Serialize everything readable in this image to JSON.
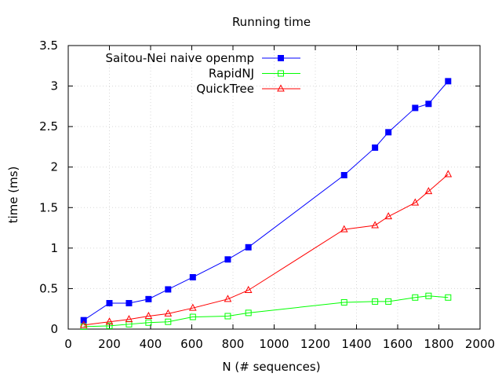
{
  "chart_data": {
    "type": "line",
    "title": "Running time",
    "xlabel": "N (# sequences)",
    "ylabel": "time (ms)",
    "xlim": [
      0,
      2000
    ],
    "ylim": [
      0,
      3.5
    ],
    "xticks": [
      0,
      200,
      400,
      600,
      800,
      1000,
      1200,
      1400,
      1600,
      1800,
      2000
    ],
    "yticks": [
      0,
      0.5,
      1,
      1.5,
      2,
      2.5,
      3,
      3.5
    ],
    "xtick_labels": [
      "0",
      "200",
      "400",
      "600",
      "800",
      "1000",
      "1200",
      "1400",
      "1600",
      "1800",
      "2000"
    ],
    "ytick_labels": [
      "0",
      "0.5",
      "1",
      "1.5",
      "2",
      "2.5",
      "3",
      "3.5"
    ],
    "grid": true,
    "legend_position": "top-left",
    "series": [
      {
        "name": "Saitou-Nei naive openmp",
        "color": "#0000ff",
        "marker": "filled-square",
        "x": [
          75,
          200,
          295,
          390,
          485,
          605,
          775,
          875,
          1340,
          1490,
          1555,
          1685,
          1750,
          1845
        ],
        "y": [
          0.11,
          0.32,
          0.32,
          0.37,
          0.49,
          0.64,
          0.86,
          1.01,
          1.9,
          2.24,
          2.43,
          2.73,
          2.78,
          3.06
        ]
      },
      {
        "name": "RapidNJ",
        "color": "#00ff00",
        "marker": "open-square",
        "x": [
          75,
          200,
          295,
          390,
          485,
          605,
          775,
          875,
          1340,
          1490,
          1555,
          1685,
          1750,
          1845
        ],
        "y": [
          0.03,
          0.04,
          0.06,
          0.08,
          0.09,
          0.15,
          0.16,
          0.2,
          0.33,
          0.34,
          0.34,
          0.39,
          0.41,
          0.39
        ]
      },
      {
        "name": "QuickTree",
        "color": "#ff0000",
        "marker": "open-triangle",
        "x": [
          75,
          200,
          295,
          390,
          485,
          605,
          775,
          875,
          1340,
          1490,
          1555,
          1685,
          1750,
          1845
        ],
        "y": [
          0.05,
          0.09,
          0.12,
          0.16,
          0.19,
          0.26,
          0.37,
          0.48,
          1.23,
          1.28,
          1.39,
          1.56,
          1.7,
          1.91
        ]
      }
    ]
  }
}
